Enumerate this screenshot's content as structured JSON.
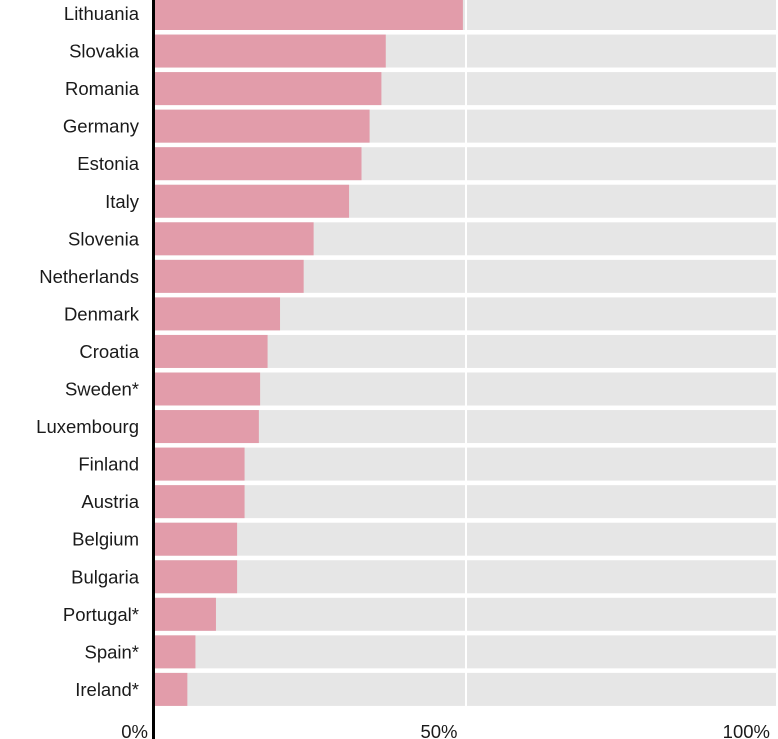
{
  "chart_data": {
    "type": "bar",
    "orientation": "horizontal",
    "categories": [
      "Lithuania",
      "Slovakia",
      "Romania",
      "Germany",
      "Estonia",
      "Italy",
      "Slovenia",
      "Netherlands",
      "Denmark",
      "Croatia",
      "Sweden*",
      "Luxembourg",
      "Finland",
      "Austria",
      "Belgium",
      "Bulgaria",
      "Portugal*",
      "Spain*",
      "Ireland*"
    ],
    "values": [
      49.5,
      37.1,
      36.4,
      34.5,
      33.2,
      31.2,
      25.5,
      23.9,
      20.1,
      18.1,
      16.9,
      16.7,
      14.4,
      14.4,
      13.2,
      13.2,
      9.8,
      6.5,
      5.2
    ],
    "xlim": [
      0,
      100
    ],
    "ticks": [
      {
        "value": 0,
        "label": "0%"
      },
      {
        "value": 50,
        "label": "50%"
      },
      {
        "value": 100,
        "label": "100%"
      }
    ],
    "colors": {
      "bar": "#e29caa",
      "track": "#e6e6e6",
      "gridline": "#ffffff",
      "axis": "#000000",
      "text": "#1a1a1a"
    },
    "grid": true,
    "legend": "none"
  }
}
